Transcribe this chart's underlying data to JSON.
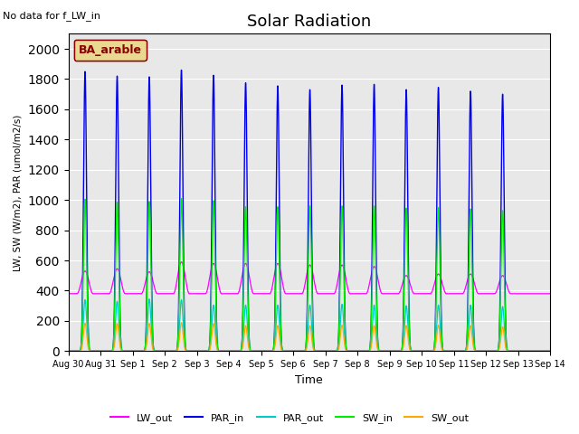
{
  "title": "Solar Radiation",
  "note": "No data for f_LW_in",
  "legend_label": "BA_arable",
  "xlabel": "Time",
  "ylabel": "LW, SW (W/m2), PAR (umol/m2/s)",
  "ylim": [
    0,
    2100
  ],
  "yticks": [
    0,
    200,
    400,
    600,
    800,
    1000,
    1200,
    1400,
    1600,
    1800,
    2000
  ],
  "n_days": 15,
  "colors": {
    "LW_out": "#ff00ff",
    "PAR_in": "#0000ee",
    "PAR_out": "#00cccc",
    "SW_in": "#00ee00",
    "SW_out": "#ffaa00"
  },
  "bg_color": "#e8e8e8",
  "fig_bg": "#ffffff",
  "PAR_in_peaks": [
    1850,
    1820,
    1815,
    1860,
    1825,
    1775,
    1755,
    1730,
    1760,
    1765,
    1730,
    1745,
    1720,
    1700
  ],
  "SW_in_peaks": [
    1005,
    985,
    990,
    1010,
    995,
    955,
    955,
    960,
    960,
    960,
    945,
    950,
    940,
    930
  ],
  "PAR_out_peaks": [
    340,
    330,
    345,
    340,
    305,
    305,
    305,
    305,
    310,
    305,
    300,
    305,
    305,
    295
  ],
  "SW_out_peaks": [
    185,
    183,
    183,
    188,
    182,
    168,
    168,
    168,
    172,
    168,
    168,
    172,
    168,
    162
  ],
  "LW_out_night": 380,
  "LW_out_day_peaks": [
    530,
    545,
    525,
    590,
    580,
    580,
    580,
    570,
    570,
    560,
    500,
    510,
    510,
    500
  ],
  "x_tick_labels": [
    "Aug 30",
    "Aug 31",
    "Sep 1",
    "Sep 2",
    "Sep 3",
    "Sep 4",
    "Sep 5",
    "Sep 6",
    "Sep 7",
    "Sep 8",
    "Sep 9",
    "Sep 10",
    "Sep 11",
    "Sep 12",
    "Sep 13",
    "Sep 14"
  ]
}
